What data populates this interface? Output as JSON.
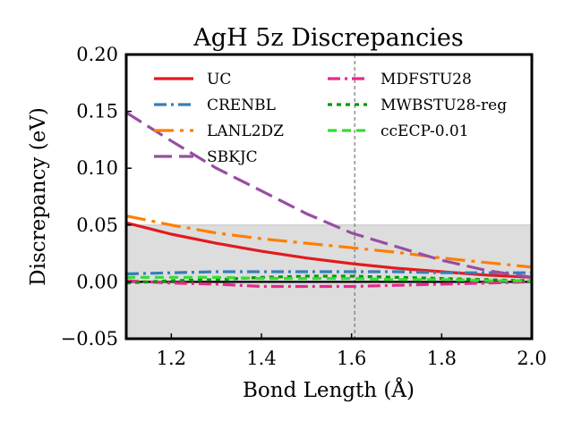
{
  "chart_data": {
    "type": "line",
    "title": "AgH 5z Discrepancies",
    "xlabel": "Bond Length (Å)",
    "ylabel": "Discrepancy (eV)",
    "xlim": [
      1.1,
      2.0
    ],
    "ylim": [
      -0.05,
      0.2
    ],
    "x_ticks": [
      1.2,
      1.4,
      1.6,
      1.8,
      2.0
    ],
    "x_tick_labels": [
      "1.2",
      "1.4",
      "1.6",
      "1.8",
      "2.0"
    ],
    "y_ticks": [
      -0.05,
      0.0,
      0.05,
      0.1,
      0.15,
      0.2
    ],
    "y_tick_labels": [
      "−0.05",
      "0.00",
      "0.05",
      "0.10",
      "0.15",
      "0.20"
    ],
    "grid": false,
    "shaded_band": {
      "y_min": -0.05,
      "y_max": 0.05,
      "color": "#dddddd"
    },
    "zero_line": {
      "y": 0.0,
      "color": "#000000"
    },
    "reference_line": {
      "x": 1.607,
      "color": "#777777",
      "style": "dashed"
    },
    "legend": {
      "placement": "top-left",
      "columns": 2
    },
    "x": [
      1.1,
      1.2,
      1.3,
      1.4,
      1.5,
      1.6,
      1.7,
      1.8,
      1.9,
      2.0
    ],
    "series": [
      {
        "name": "UC",
        "color": "#e31a1c",
        "dash": "solid",
        "values": [
          0.052,
          0.042,
          0.034,
          0.027,
          0.021,
          0.016,
          0.012,
          0.009,
          0.006,
          0.004
        ]
      },
      {
        "name": "CRENBL",
        "color": "#377eb8",
        "dash": "dashdot",
        "values": [
          0.007,
          0.008,
          0.009,
          0.009,
          0.009,
          0.009,
          0.009,
          0.008,
          0.008,
          0.008
        ]
      },
      {
        "name": "LANL2DZ",
        "color": "#ff7f00",
        "dash": "longdashdot",
        "values": [
          0.058,
          0.05,
          0.043,
          0.038,
          0.034,
          0.03,
          0.026,
          0.021,
          0.017,
          0.013
        ]
      },
      {
        "name": "SBKJC",
        "color": "#984ea3",
        "dash": "longdash",
        "values": [
          0.149,
          0.124,
          0.1,
          0.08,
          0.06,
          0.043,
          0.031,
          0.019,
          0.01,
          0.004
        ]
      },
      {
        "name": "MDFSTU28",
        "color": "#e7298a",
        "dash": "dashdot",
        "values": [
          0.001,
          -0.001,
          -0.002,
          -0.004,
          -0.004,
          -0.004,
          -0.003,
          -0.002,
          -0.001,
          0.0
        ]
      },
      {
        "name": "MWBSTU28-reg",
        "color": "#009900",
        "dash": "dotted",
        "values": [
          -0.001,
          0.001,
          0.002,
          0.004,
          0.005,
          0.005,
          0.004,
          0.003,
          0.002,
          0.001
        ]
      },
      {
        "name": "ccECP-0.01",
        "color": "#33dd33",
        "dash": "dashed",
        "values": [
          0.004,
          0.004,
          0.004,
          0.003,
          0.003,
          0.003,
          0.002,
          0.002,
          0.001,
          0.001
        ]
      }
    ]
  }
}
